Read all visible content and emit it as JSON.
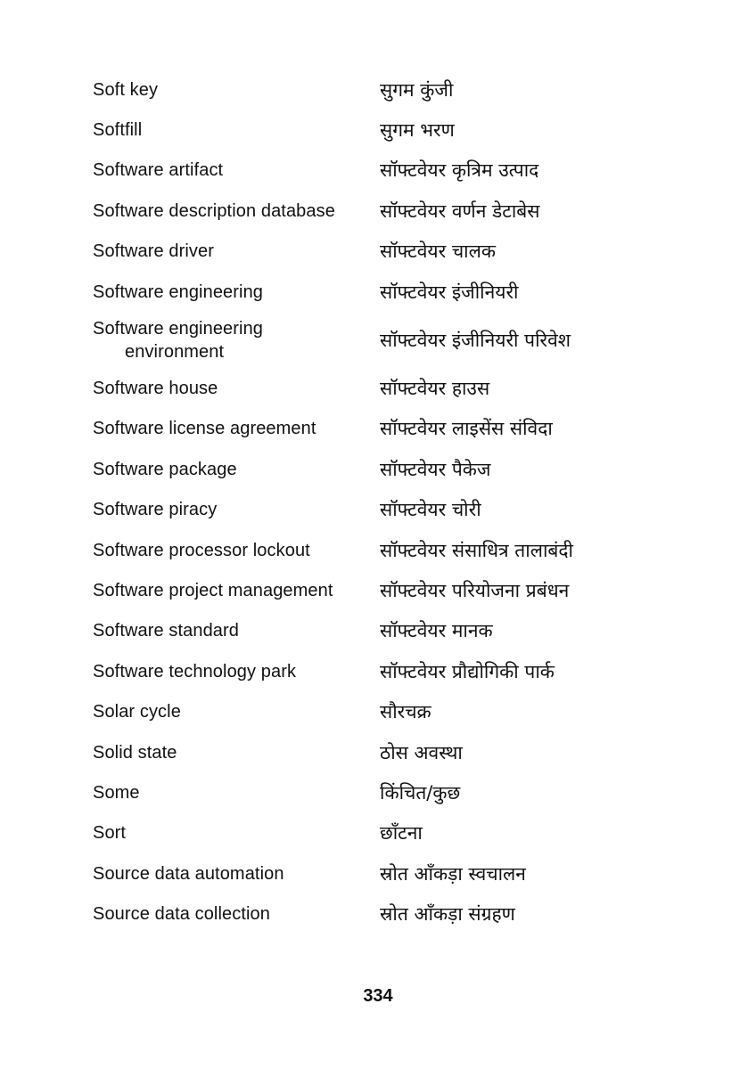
{
  "entries": [
    {
      "term": "Soft key",
      "translation": "सुगम कुंजी"
    },
    {
      "term": "Softfill",
      "translation": "सुगम भरण"
    },
    {
      "term": "Software artifact",
      "translation": "सॉफ्टवेयर कृत्रिम उत्पाद"
    },
    {
      "term": "Software description database",
      "translation": "सॉफ्टवेयर वर्णन डेटाबेस"
    },
    {
      "term": "Software driver",
      "translation": "सॉफ्टवेयर चालक"
    },
    {
      "term": "Software engineering",
      "translation": "सॉफ्टवेयर इंजीनियरी"
    },
    {
      "term": "Software engineering",
      "term_line2": "environment",
      "translation": "सॉफ्टवेयर इंजीनियरी परिवेश"
    },
    {
      "term": "Software house",
      "translation": "सॉफ्टवेयर हाउस"
    },
    {
      "term": "Software license agreement",
      "translation": "सॉफ्टवेयर लाइसेंस संविदा"
    },
    {
      "term": "Software package",
      "translation": "सॉफ्टवेयर पैकेज"
    },
    {
      "term": "Software piracy",
      "translation": "सॉफ्टवेयर चोरी"
    },
    {
      "term": "Software processor lockout",
      "translation": "सॉफ्टवेयर संसाधित्र तालाबंदी"
    },
    {
      "term": "Software project management",
      "translation": "सॉफ्टवेयर परियोजना प्रबंधन"
    },
    {
      "term": "Software standard",
      "translation": "सॉफ्टवेयर मानक"
    },
    {
      "term": "Software technology park",
      "translation": "सॉफ्टवेयर प्रौद्योगिकी पार्क"
    },
    {
      "term": "Solar cycle",
      "translation": "सौरचक्र"
    },
    {
      "term": "Solid state",
      "translation": "ठोस अवस्था"
    },
    {
      "term": "Some",
      "translation": "किंचित/कुछ"
    },
    {
      "term": "Sort",
      "translation": "छाँटना"
    },
    {
      "term": "Source data automation",
      "translation": "स्रोत आँकड़ा स्वचालन"
    },
    {
      "term": "Source data collection",
      "translation": "स्रोत आँकड़ा संग्रहण"
    }
  ],
  "page_number": "334"
}
